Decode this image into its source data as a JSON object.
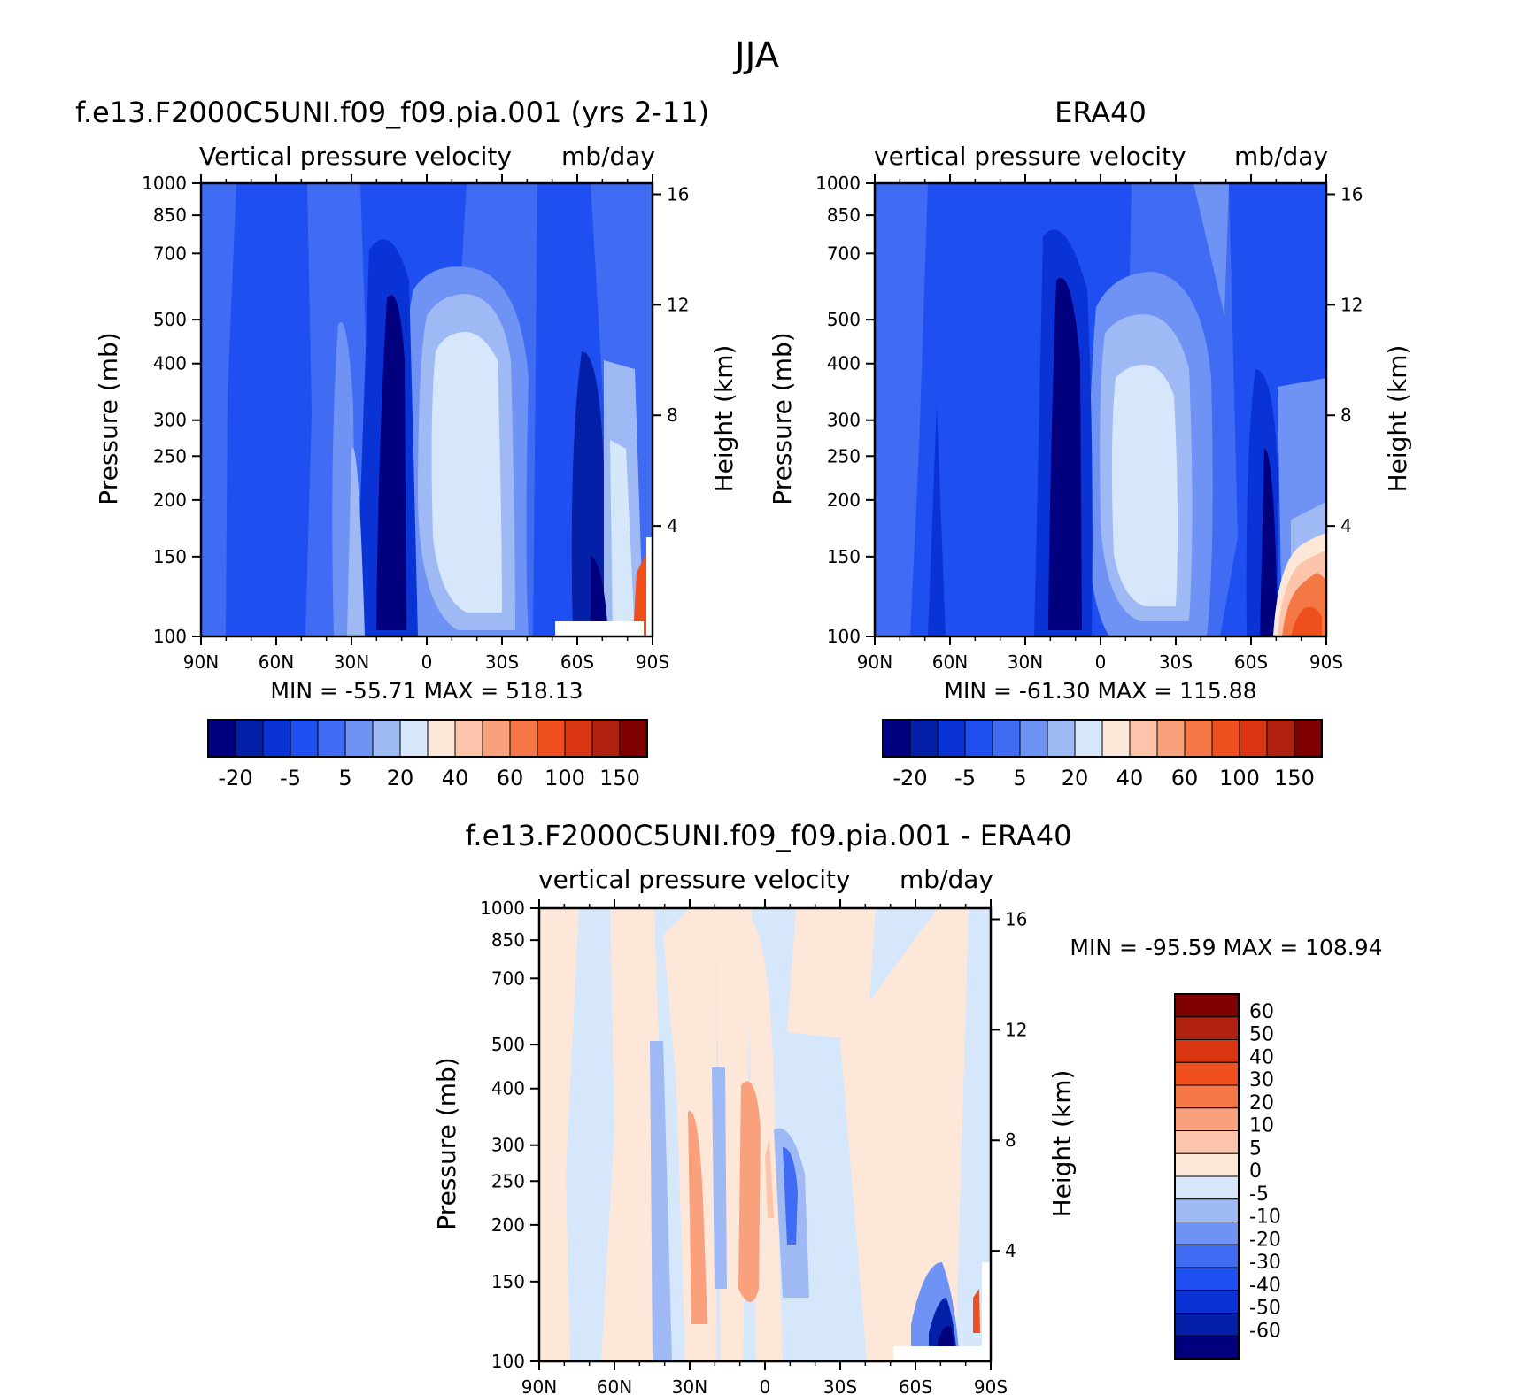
{
  "figure": {
    "title": "JJA"
  },
  "colors": {
    "scale": [
      "#00007f",
      "#0520a8",
      "#0a33d6",
      "#1f4ff0",
      "#3f6cf3",
      "#6f93f4",
      "#9fb9f5",
      "#d6e7fb",
      "#fde7d9",
      "#fcc5ab",
      "#f9a07d",
      "#f57745",
      "#ef4f1c",
      "#d93510",
      "#b02110",
      "#7f0000"
    ]
  },
  "chart_data": [
    {
      "type": "heatmap",
      "title": "f.e13.F2000C5UNI.f09_f09.pia.001 (yrs 2-11)",
      "subtitle_left": "Vertical pressure velocity",
      "subtitle_right": "mb/day",
      "ylabel": "Pressure (mb)",
      "ylabel_right": "Height (km)",
      "x_ticks": [
        "90N",
        "60N",
        "30N",
        "0",
        "30S",
        "60S",
        "90S"
      ],
      "y_ticks": [
        "100",
        "150",
        "200",
        "250",
        "300",
        "400",
        "500",
        "700",
        "850",
        "1000"
      ],
      "y_ticks_right": [
        "16",
        "12",
        "8",
        "4"
      ],
      "stats": "MIN = -55.71   MAX = 518.13",
      "colorbar_labels": [
        "-20",
        "-5",
        "5",
        "20",
        "40",
        "60",
        "100",
        "150"
      ]
    },
    {
      "type": "heatmap",
      "title": "ERA40",
      "subtitle_left": "vertical pressure velocity",
      "subtitle_right": "mb/day",
      "ylabel": "Pressure (mb)",
      "ylabel_right": "Height (km)",
      "x_ticks": [
        "90N",
        "60N",
        "30N",
        "0",
        "30S",
        "60S",
        "90S"
      ],
      "y_ticks": [
        "100",
        "150",
        "200",
        "250",
        "300",
        "400",
        "500",
        "700",
        "850",
        "1000"
      ],
      "y_ticks_right": [
        "16",
        "12",
        "8",
        "4"
      ],
      "stats": "MIN = -61.30   MAX = 115.88",
      "colorbar_labels": [
        "-20",
        "-5",
        "5",
        "20",
        "40",
        "60",
        "100",
        "150"
      ]
    },
    {
      "type": "heatmap",
      "title": "f.e13.F2000C5UNI.f09_f09.pia.001 - ERA40",
      "subtitle_left": "vertical pressure velocity",
      "subtitle_right": "mb/day",
      "ylabel": "Pressure (mb)",
      "ylabel_right": "Height (km)",
      "x_ticks": [
        "90N",
        "60N",
        "30N",
        "0",
        "30S",
        "60S",
        "90S"
      ],
      "y_ticks": [
        "100",
        "150",
        "200",
        "250",
        "300",
        "400",
        "500",
        "700",
        "850",
        "1000"
      ],
      "y_ticks_right": [
        "16",
        "12",
        "8",
        "4"
      ],
      "stats": "MIN = -95.59   MAX = 108.94",
      "colorbar_labels": [
        "60",
        "50",
        "40",
        "30",
        "20",
        "10",
        "5",
        "0",
        "-5",
        "-10",
        "-20",
        "-30",
        "-40",
        "-50",
        "-60"
      ]
    }
  ]
}
